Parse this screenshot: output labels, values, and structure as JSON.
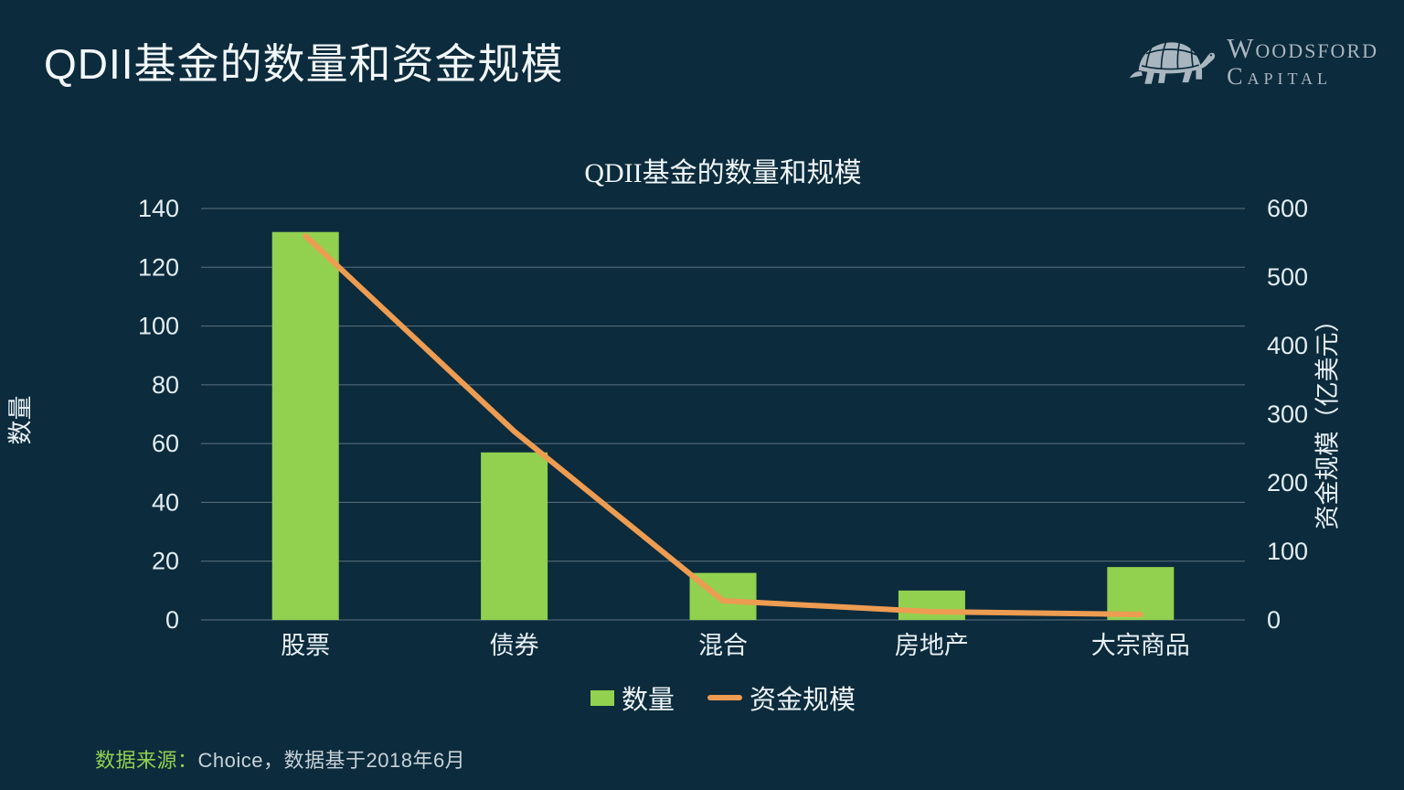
{
  "header": {
    "title": "QDII基金的数量和资金规模",
    "logo": {
      "line1": "Woodsford",
      "line2": "Capital"
    }
  },
  "chart_data": {
    "type": "combo-bar-line",
    "title": "QDII基金的数量和规模",
    "categories": [
      "股票",
      "债券",
      "混合",
      "房地产",
      "大宗商品"
    ],
    "series": [
      {
        "name": "数量",
        "type": "bar",
        "axis": "left",
        "color": "#92D050",
        "values": [
          132,
          57,
          16,
          10,
          18
        ]
      },
      {
        "name": "资金规模",
        "type": "line",
        "axis": "right",
        "color": "#ED9C51",
        "values": [
          560,
          275,
          28,
          12,
          8
        ]
      }
    ],
    "left_axis": {
      "label": "数量",
      "min": 0,
      "max": 140,
      "step": 20
    },
    "right_axis": {
      "label": "资金规模（亿美元）",
      "min": 0,
      "max": 600,
      "step": 100
    },
    "grid": true,
    "legend_position": "bottom"
  },
  "footer": {
    "source_label": "数据来源：",
    "source_text": "Choice，数据基于2018年6月"
  }
}
